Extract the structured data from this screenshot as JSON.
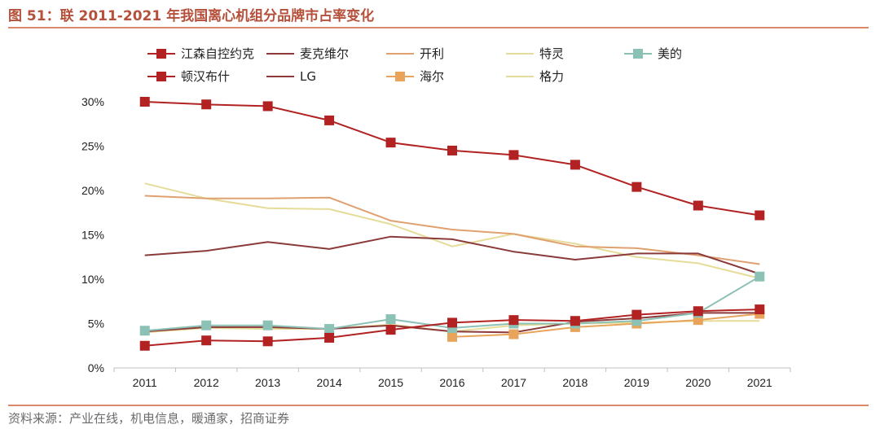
{
  "figure": {
    "title": "图 51：联 2011-2021 年我国离心机组分品牌市占率变化",
    "source": "资料来源：产业在线，机电信息，暖通家，招商证券"
  },
  "chart_data": {
    "type": "line",
    "x": [
      "2011",
      "2012",
      "2013",
      "2014",
      "2015",
      "2016",
      "2017",
      "2018",
      "2019",
      "2020",
      "2021"
    ],
    "ylim": [
      0,
      30
    ],
    "yticks": [
      0,
      5,
      10,
      15,
      20,
      25,
      30
    ],
    "ytick_labels": [
      "0%",
      "5%",
      "10%",
      "15%",
      "20%",
      "25%",
      "30%"
    ],
    "grid": false,
    "legend_position": "top",
    "series": [
      {
        "name": "江森自控约克",
        "color": "#b22222",
        "marker": "square",
        "values": [
          30.0,
          29.7,
          29.5,
          27.9,
          25.4,
          24.5,
          24.0,
          22.9,
          20.4,
          18.3,
          17.2
        ]
      },
      {
        "name": "麦克维尔",
        "color": "#8b3a3a",
        "marker": "none",
        "values": [
          12.7,
          13.2,
          14.2,
          13.4,
          14.8,
          14.5,
          13.1,
          12.2,
          12.9,
          12.9,
          10.6
        ]
      },
      {
        "name": "开利",
        "color": "#e0a070",
        "marker": "none",
        "values": [
          19.4,
          19.1,
          19.1,
          19.2,
          16.6,
          15.6,
          15.1,
          13.7,
          13.5,
          12.7,
          11.7
        ]
      },
      {
        "name": "特灵",
        "color": "#e6dc9a",
        "marker": "none",
        "values": [
          20.8,
          19.1,
          18.0,
          17.9,
          16.2,
          13.7,
          15.1,
          14.0,
          12.5,
          11.8,
          10.1
        ]
      },
      {
        "name": "美的",
        "color": "#8cc1b5",
        "marker": "square",
        "values": [
          4.2,
          4.8,
          4.8,
          4.4,
          5.5,
          4.5,
          5.0,
          5.0,
          5.3,
          6.2,
          10.3
        ]
      },
      {
        "name": "顿汉布什",
        "color": "#b22222",
        "marker": "square",
        "values": [
          2.5,
          3.1,
          3.0,
          3.4,
          4.3,
          5.1,
          5.4,
          5.3,
          6.0,
          6.4,
          6.6
        ]
      },
      {
        "name": "LG",
        "color": "#8b3a3a",
        "marker": "none",
        "values": [
          4.1,
          4.6,
          4.6,
          4.4,
          4.8,
          4.1,
          4.0,
          5.2,
          5.6,
          6.2,
          6.2
        ]
      },
      {
        "name": "海尔",
        "color": "#e8a45a",
        "marker": "square",
        "values": [
          null,
          null,
          null,
          null,
          null,
          3.5,
          3.8,
          4.6,
          5.0,
          5.4,
          6.1
        ]
      },
      {
        "name": "格力",
        "color": "#e6dc9a",
        "marker": "none",
        "values": [
          4.0,
          4.5,
          4.4,
          4.4,
          4.9,
          4.1,
          4.8,
          5.0,
          5.1,
          5.3,
          5.3
        ]
      }
    ]
  }
}
